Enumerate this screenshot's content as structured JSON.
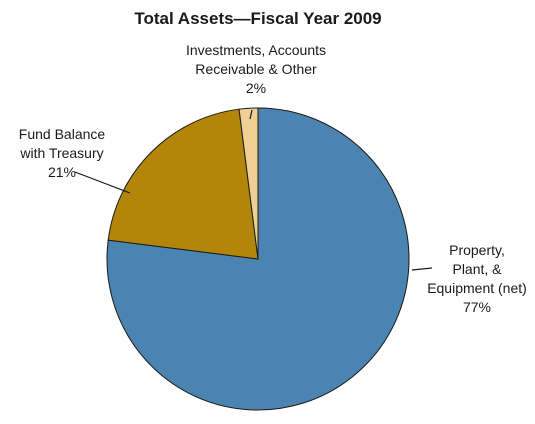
{
  "chart_data": {
    "type": "pie",
    "title": "Total Assets—Fiscal Year 2009",
    "start_angle_deg": 0,
    "direction": "clockwise",
    "slices": [
      {
        "name": "Property, Plant, & Equipment (net)",
        "label_lines": [
          "Property,",
          "Plant, &",
          "Equipment (net)",
          "77%"
        ],
        "value": 77,
        "color": "#4b84b0"
      },
      {
        "name": "Fund Balance with Treasury",
        "label_lines": [
          "Fund Balance",
          "with Treasury",
          "21%"
        ],
        "value": 21,
        "color": "#b3860a"
      },
      {
        "name": "Investments, Accounts Receivable & Other",
        "label_lines": [
          "Investments, Accounts",
          "Receivable & Other",
          "2%"
        ],
        "value": 2,
        "color": "#efcf93"
      }
    ]
  }
}
